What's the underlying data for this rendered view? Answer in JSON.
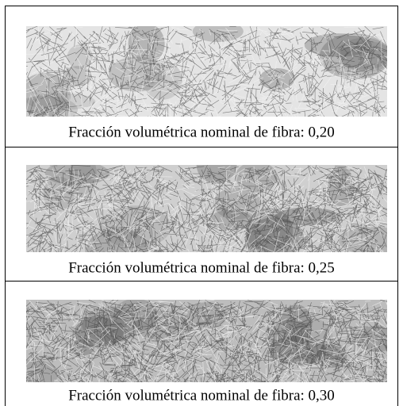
{
  "panels": [
    {
      "caption": "Fracción volumétrica nominal de fibra: 0,20"
    },
    {
      "caption": "Fracción volumétrica nominal de fibra: 0,25"
    },
    {
      "caption": "Fracción volumétrica nominal de fibra: 0,30"
    }
  ]
}
